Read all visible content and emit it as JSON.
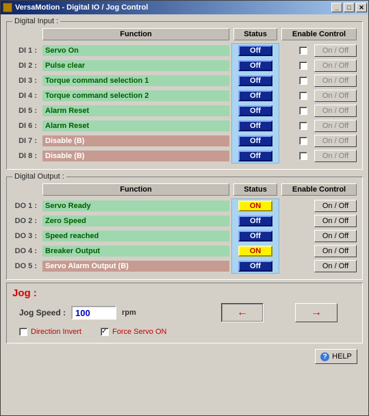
{
  "window": {
    "title": "VersaMotion - Digital IO / Jog Control"
  },
  "palette": {
    "bar_green_bg": "#9fd7af",
    "bar_green_fg": "#006000",
    "bar_brown_bg": "#c79b91",
    "bar_brown_fg": "#ffffff",
    "status_off_bg": "#102890",
    "status_off_border_light": "#88a8ff",
    "status_off_border_dark": "#041060",
    "status_off_fg": "#ffffff",
    "status_on_bg": "#fff200",
    "status_on_border_light": "#fff9a0",
    "status_on_border_dark": "#a09000",
    "status_on_fg": "#c00000",
    "status_strip_bg": "#aad4f0",
    "arrow_red": "#c00000"
  },
  "headers": {
    "function": "Function",
    "status": "Status",
    "enable": "Enable Control"
  },
  "onoff_label": "On / Off",
  "di": {
    "legend": "Digital Input :",
    "rows": [
      {
        "id": "DI 1 :",
        "func": "Servo On",
        "style": "green",
        "status": "Off",
        "enable_disabled": true,
        "show_chk": true
      },
      {
        "id": "DI 2 :",
        "func": "Pulse clear",
        "style": "green",
        "status": "Off",
        "enable_disabled": true,
        "show_chk": true
      },
      {
        "id": "DI 3 :",
        "func": "Torque command selection 1",
        "style": "green",
        "status": "Off",
        "enable_disabled": true,
        "show_chk": true
      },
      {
        "id": "DI 4 :",
        "func": "Torque command selection 2",
        "style": "green",
        "status": "Off",
        "enable_disabled": true,
        "show_chk": true
      },
      {
        "id": "DI 5 :",
        "func": "Alarm Reset",
        "style": "green",
        "status": "Off",
        "enable_disabled": true,
        "show_chk": true
      },
      {
        "id": "DI 6 :",
        "func": "Alarm Reset",
        "style": "green",
        "status": "Off",
        "enable_disabled": true,
        "show_chk": true
      },
      {
        "id": "DI 7 :",
        "func": "Disable (B)",
        "style": "brown",
        "status": "Off",
        "enable_disabled": true,
        "show_chk": true
      },
      {
        "id": "DI 8 :",
        "func": "Disable (B)",
        "style": "brown",
        "status": "Off",
        "enable_disabled": true,
        "show_chk": true
      }
    ]
  },
  "do": {
    "legend": "Digital Output :",
    "rows": [
      {
        "id": "DO 1 :",
        "func": "Servo Ready",
        "style": "green",
        "status": "ON",
        "enable_disabled": false,
        "show_chk": false
      },
      {
        "id": "DO 2 :",
        "func": "Zero Speed",
        "style": "green",
        "status": "Off",
        "enable_disabled": false,
        "show_chk": false
      },
      {
        "id": "DO 3 :",
        "func": "Speed reached",
        "style": "green",
        "status": "Off",
        "enable_disabled": false,
        "show_chk": false
      },
      {
        "id": "DO 4 :",
        "func": "Breaker Output",
        "style": "green",
        "status": "ON",
        "enable_disabled": false,
        "show_chk": false
      },
      {
        "id": "DO 5 :",
        "func": "Servo Alarm Output (B)",
        "style": "brown",
        "status": "Off",
        "enable_disabled": false,
        "show_chk": false
      }
    ]
  },
  "jog": {
    "title": "Jog :",
    "speed_label": "Jog Speed :",
    "speed_value": "100",
    "unit": "rpm",
    "direction_invert_label": "Direction Invert",
    "direction_invert_checked": false,
    "force_servo_label": "Force Servo ON",
    "force_servo_checked": true
  },
  "help_label": "HELP"
}
